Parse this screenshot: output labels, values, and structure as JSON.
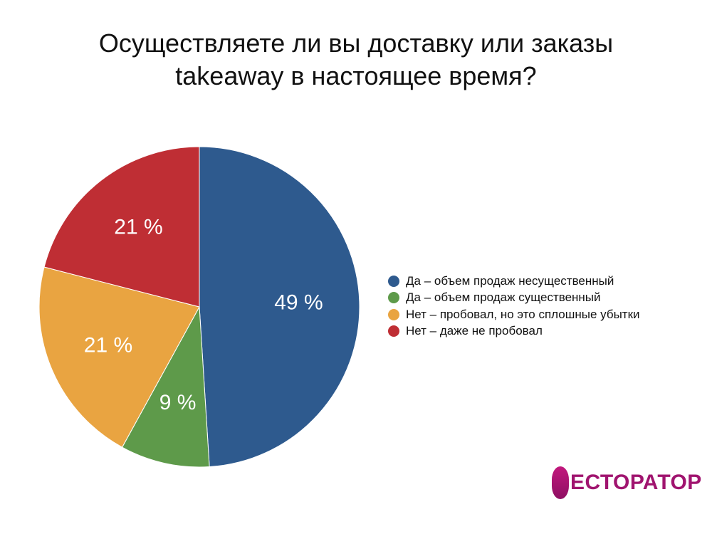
{
  "title": {
    "line1": "Осуществляете ли вы доставку или заказы",
    "line2": "takeaway в настоящее время?"
  },
  "chart_data": {
    "type": "pie",
    "title": "Осуществляете ли вы доставку или заказы takeaway в настоящее время?",
    "categories": [
      "Да – объем продаж несущественный",
      "Да – объем продаж существенный",
      "Нет – пробовал, но это сплошные убытки",
      "Нет – даже не пробовал"
    ],
    "values": [
      49,
      9,
      21,
      21
    ],
    "labels": [
      "49 %",
      "9 %",
      "21 %",
      "21 %"
    ],
    "colors": [
      "#2e5a8e",
      "#5e9a4a",
      "#e9a441",
      "#bf2e34"
    ],
    "legend_position": "right"
  },
  "logo": {
    "text": "ЕСТОРАТОР"
  }
}
